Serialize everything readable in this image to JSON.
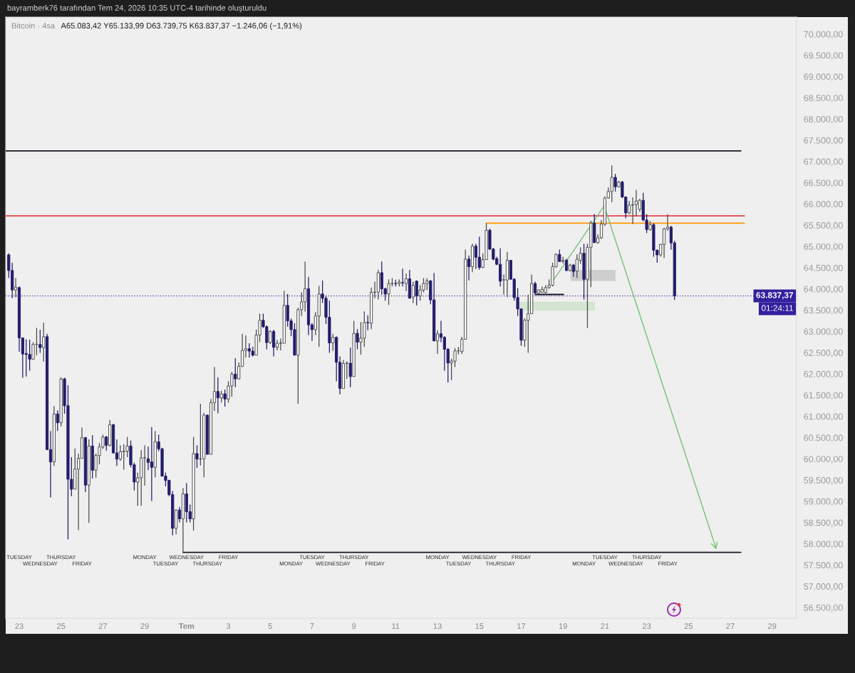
{
  "chart_data": {
    "type": "candlestick",
    "title": "Bitcoin · 4sa",
    "subtitle": "A65.083,42 Y65.133,99 D63.739,75 K63.837,37 −1.246,06 (−1,91%)",
    "annotations": [
      "bayramberk76 tarafından Tem 24, 2026 10:35 UTC-4 tarihinde oluşturuldu",
      {
        "text": "01:24:11",
        "y": 63837.37
      },
      "TUESDAY",
      "WEDNESDAY",
      "THURSDAY",
      "FRIDAY",
      "MONDAY",
      "TUESDAY",
      "WEDNESDAY",
      "THURSDAY",
      "FRIDAY",
      "MONDAY",
      "TUESDAY",
      "WEDNESDAY",
      "THURSDAY",
      "FRIDAY",
      "MONDAY",
      "TUESDAY",
      "WEDNESDAY",
      "THURSDAY",
      "FRIDAY",
      "MONDAY",
      "TUESDAY",
      "WEDNESDAY",
      "THURSDAY",
      "FRIDAY"
    ],
    "x": [
      "2026-06-22T12:00",
      "2026-06-22T16:00",
      "2026-06-22T20:00",
      "2026-06-23T00:00",
      "2026-06-23T04:00",
      "2026-06-23T08:00",
      "2026-06-23T12:00",
      "2026-06-23T16:00",
      "2026-06-23T20:00",
      "2026-06-24T00:00",
      "2026-06-24T04:00",
      "2026-06-24T08:00",
      "2026-06-24T12:00",
      "2026-06-24T16:00",
      "2026-06-24T20:00",
      "2026-06-25T00:00",
      "2026-06-25T04:00",
      "2026-06-25T08:00",
      "2026-06-25T12:00",
      "2026-06-25T16:00",
      "2026-06-25T20:00",
      "2026-06-26T00:00",
      "2026-06-26T04:00",
      "2026-06-26T08:00",
      "2026-06-26T12:00",
      "2026-06-26T16:00",
      "2026-06-26T20:00",
      "2026-06-27T00:00",
      "2026-06-27T04:00",
      "2026-06-27T08:00",
      "2026-06-27T12:00",
      "2026-06-27T16:00",
      "2026-06-27T20:00",
      "2026-06-28T00:00",
      "2026-06-28T04:00",
      "2026-06-28T08:00",
      "2026-06-28T12:00",
      "2026-06-28T16:00",
      "2026-06-28T20:00",
      "2026-06-29T00:00",
      "2026-06-29T04:00",
      "2026-06-29T08:00",
      "2026-06-29T12:00",
      "2026-06-29T16:00",
      "2026-06-29T20:00",
      "2026-06-30T00:00",
      "2026-06-30T04:00",
      "2026-06-30T08:00",
      "2026-06-30T12:00",
      "2026-06-30T16:00",
      "2026-06-30T20:00",
      "2026-07-01T00:00",
      "2026-07-01T04:00",
      "2026-07-01T08:00",
      "2026-07-01T12:00",
      "2026-07-01T16:00",
      "2026-07-01T20:00",
      "2026-07-02T00:00",
      "2026-07-02T04:00",
      "2026-07-02T08:00",
      "2026-07-02T12:00",
      "2026-07-02T16:00",
      "2026-07-02T20:00",
      "2026-07-03T00:00",
      "2026-07-03T04:00",
      "2026-07-03T08:00",
      "2026-07-03T12:00",
      "2026-07-03T16:00",
      "2026-07-03T20:00",
      "2026-07-04T00:00",
      "2026-07-04T04:00",
      "2026-07-04T08:00",
      "2026-07-04T12:00",
      "2026-07-04T16:00",
      "2026-07-04T20:00",
      "2026-07-05T00:00",
      "2026-07-05T04:00",
      "2026-07-05T08:00",
      "2026-07-05T12:00",
      "2026-07-05T16:00",
      "2026-07-05T20:00",
      "2026-07-06T00:00",
      "2026-07-06T04:00",
      "2026-07-06T08:00",
      "2026-07-06T12:00",
      "2026-07-06T16:00",
      "2026-07-06T20:00",
      "2026-07-07T00:00",
      "2026-07-07T04:00",
      "2026-07-07T08:00",
      "2026-07-07T12:00",
      "2026-07-07T16:00",
      "2026-07-07T20:00",
      "2026-07-08T00:00",
      "2026-07-08T04:00",
      "2026-07-08T08:00",
      "2026-07-08T12:00",
      "2026-07-08T16:00",
      "2026-07-08T20:00",
      "2026-07-09T00:00",
      "2026-07-09T04:00",
      "2026-07-09T08:00",
      "2026-07-09T12:00",
      "2026-07-09T16:00",
      "2026-07-09T20:00",
      "2026-07-10T00:00",
      "2026-07-10T04:00",
      "2026-07-10T08:00",
      "2026-07-10T12:00",
      "2026-07-10T16:00",
      "2026-07-10T20:00",
      "2026-07-11T00:00",
      "2026-07-11T04:00",
      "2026-07-11T08:00",
      "2026-07-11T12:00",
      "2026-07-11T16:00",
      "2026-07-11T20:00",
      "2026-07-12T00:00",
      "2026-07-12T04:00",
      "2026-07-12T08:00",
      "2026-07-12T12:00",
      "2026-07-12T16:00",
      "2026-07-12T20:00",
      "2026-07-13T00:00",
      "2026-07-13T04:00",
      "2026-07-13T08:00",
      "2026-07-13T12:00",
      "2026-07-13T16:00",
      "2026-07-13T20:00",
      "2026-07-14T00:00",
      "2026-07-14T04:00",
      "2026-07-14T08:00",
      "2026-07-14T12:00",
      "2026-07-14T16:00",
      "2026-07-14T20:00",
      "2026-07-15T00:00",
      "2026-07-15T04:00",
      "2026-07-15T08:00",
      "2026-07-15T12:00",
      "2026-07-15T16:00",
      "2026-07-15T20:00",
      "2026-07-16T00:00",
      "2026-07-16T04:00",
      "2026-07-16T08:00",
      "2026-07-16T12:00",
      "2026-07-16T16:00",
      "2026-07-16T20:00",
      "2026-07-17T00:00",
      "2026-07-17T04:00",
      "2026-07-17T08:00",
      "2026-07-17T12:00",
      "2026-07-17T16:00",
      "2026-07-17T20:00",
      "2026-07-18T00:00",
      "2026-07-18T04:00",
      "2026-07-18T08:00",
      "2026-07-18T12:00",
      "2026-07-18T16:00",
      "2026-07-18T20:00",
      "2026-07-19T00:00",
      "2026-07-19T04:00",
      "2026-07-19T08:00",
      "2026-07-19T12:00",
      "2026-07-19T16:00",
      "2026-07-19T20:00",
      "2026-07-20T00:00",
      "2026-07-20T04:00",
      "2026-07-20T08:00",
      "2026-07-20T12:00",
      "2026-07-20T16:00",
      "2026-07-20T20:00",
      "2026-07-21T00:00",
      "2026-07-21T04:00",
      "2026-07-21T08:00",
      "2026-07-21T12:00",
      "2026-07-21T16:00",
      "2026-07-21T20:00",
      "2026-07-22T00:00",
      "2026-07-22T04:00",
      "2026-07-22T08:00",
      "2026-07-22T12:00",
      "2026-07-22T16:00",
      "2026-07-22T20:00",
      "2026-07-23T00:00",
      "2026-07-23T04:00",
      "2026-07-23T08:00",
      "2026-07-23T12:00",
      "2026-07-23T16:00",
      "2026-07-23T20:00",
      "2026-07-24T00:00",
      "2026-07-24T04:00",
      "2026-07-24T08:00"
    ],
    "ohlc": [
      [
        64802,
        64840,
        64255,
        64434
      ],
      [
        64434,
        64618,
        63780,
        63976
      ],
      [
        63976,
        64255,
        63808,
        64043
      ],
      [
        64032,
        64060,
        62524,
        62848
      ],
      [
        62848,
        62848,
        61910,
        62469
      ],
      [
        62480,
        62815,
        61938,
        62458
      ],
      [
        62458,
        62804,
        62078,
        62346
      ],
      [
        62346,
        62748,
        62346,
        62692
      ],
      [
        62692,
        63083,
        62441,
        62700
      ],
      [
        62692,
        63038,
        62496,
        62619
      ],
      [
        62619,
        63206,
        62290,
        62876
      ],
      [
        62876,
        62943,
        60219,
        60219
      ],
      [
        60219,
        60654,
        59091,
        59928
      ],
      [
        59928,
        61240,
        59833,
        61056
      ],
      [
        61056,
        61140,
        60654,
        60850
      ],
      [
        60850,
        61921,
        60766,
        61882
      ],
      [
        61882,
        61910,
        61062,
        61251
      ],
      [
        61251,
        61732,
        58103,
        59521
      ],
      [
        59521,
        60040,
        59119,
        59286
      ],
      [
        59286,
        60246,
        59286,
        59761
      ],
      [
        59761,
        60124,
        58320,
        60012
      ],
      [
        60012,
        60738,
        60012,
        60498
      ],
      [
        60498,
        60515,
        59219,
        59381
      ],
      [
        59381,
        60458,
        58494,
        60302
      ],
      [
        60302,
        60559,
        59537,
        59733
      ],
      [
        59733,
        60124,
        59554,
        60079
      ],
      [
        60079,
        60375,
        59872,
        60280
      ],
      [
        60280,
        60570,
        60235,
        60515
      ],
      [
        60515,
        60542,
        60190,
        60319
      ],
      [
        60319,
        60916,
        60291,
        60805
      ],
      [
        60805,
        60822,
        60124,
        60140
      ],
      [
        60140,
        60458,
        59833,
        59995
      ],
      [
        59995,
        60319,
        59956,
        60168
      ],
      [
        60168,
        60347,
        59744,
        60180
      ],
      [
        60180,
        60515,
        60040,
        60302
      ],
      [
        60302,
        60430,
        59800,
        59861
      ],
      [
        59861,
        59912,
        59258,
        59454
      ],
      [
        59454,
        59677,
        58894,
        59554
      ],
      [
        59554,
        60207,
        58894,
        60023
      ],
      [
        60023,
        60319,
        59370,
        60030
      ],
      [
        60001,
        60291,
        59733,
        59918
      ],
      [
        59929,
        60749,
        59008,
        59800
      ],
      [
        59800,
        60654,
        59565,
        60403
      ],
      [
        60403,
        60570,
        60180,
        60236
      ],
      [
        60236,
        60263,
        59594,
        59594
      ],
      [
        59594,
        59678,
        59354,
        59493
      ],
      [
        59493,
        59510,
        59119,
        59158
      ],
      [
        59158,
        59242,
        58198,
        58366
      ],
      [
        58366,
        58812,
        58226,
        58795
      ],
      [
        58795,
        58868,
        58505,
        58589
      ],
      [
        58589,
        59315,
        57800,
        59175
      ],
      [
        59175,
        59426,
        58505,
        58756
      ],
      [
        58756,
        58924,
        58505,
        58589
      ],
      [
        58589,
        60515,
        58310,
        60124
      ],
      [
        60124,
        60320,
        59789,
        59996
      ],
      [
        59996,
        61297,
        59845,
        60001
      ],
      [
        60001,
        61084,
        59565,
        61029
      ],
      [
        61029,
        61045,
        60107,
        60107
      ],
      [
        60107,
        61408,
        60107,
        61324
      ],
      [
        61324,
        62162,
        61129,
        61587
      ],
      [
        61587,
        61922,
        61073,
        61436
      ],
      [
        61436,
        61604,
        61324,
        61531
      ],
      [
        61531,
        61632,
        61229,
        61408
      ],
      [
        61408,
        61827,
        61324,
        61715
      ],
      [
        61715,
        62050,
        61464,
        61994
      ],
      [
        61994,
        62369,
        61687,
        61883
      ],
      [
        61883,
        62274,
        61866,
        62179
      ],
      [
        62179,
        62944,
        62162,
        62553
      ],
      [
        62553,
        62905,
        62385,
        62592
      ],
      [
        62592,
        62720,
        62385,
        62536
      ],
      [
        62536,
        62637,
        62413,
        62441
      ],
      [
        62441,
        63039,
        62441,
        62916
      ],
      [
        62916,
        63418,
        62748,
        63262
      ],
      [
        63262,
        63418,
        63083,
        63111
      ],
      [
        63111,
        63139,
        62581,
        62737
      ],
      [
        62737,
        63027,
        62704,
        63000
      ],
      [
        63000,
        63039,
        62413,
        62625
      ],
      [
        62625,
        62803,
        62552,
        62720
      ],
      [
        62720,
        62831,
        62552,
        62730
      ],
      [
        62720,
        63959,
        62720,
        63613
      ],
      [
        63613,
        63881,
        63110,
        63250
      ],
      [
        63250,
        63306,
        62887,
        63043
      ],
      [
        63043,
        63194,
        62440,
        62440
      ],
      [
        62440,
        63557,
        61296,
        63512
      ],
      [
        63512,
        63920,
        63362,
        63696
      ],
      [
        63696,
        64646,
        63473,
        64004
      ],
      [
        64004,
        64283,
        62915,
        63155
      ],
      [
        63155,
        63194,
        62775,
        63043
      ],
      [
        63043,
        63457,
        62915,
        63362
      ],
      [
        63362,
        64071,
        62636,
        63881
      ],
      [
        63881,
        64199,
        63669,
        63780
      ],
      [
        63780,
        63836,
        63177,
        63334
      ],
      [
        63334,
        63724,
        62496,
        62731
      ],
      [
        62731,
        62943,
        62541,
        62859
      ],
      [
        62859,
        62887,
        61826,
        62273
      ],
      [
        62273,
        62412,
        61519,
        61659
      ],
      [
        61659,
        62329,
        61659,
        62245
      ],
      [
        62245,
        62300,
        61882,
        62252
      ],
      [
        62252,
        62619,
        61687,
        61938
      ],
      [
        61938,
        63250,
        61938,
        62954
      ],
      [
        62954,
        63055,
        62580,
        62748
      ],
      [
        62748,
        63222,
        62451,
        62842
      ],
      [
        62842,
        63473,
        62636,
        63211
      ],
      [
        63211,
        63378,
        63026,
        63205
      ],
      [
        63194,
        64032,
        63054,
        63920
      ],
      [
        63920,
        64171,
        63780,
        63926
      ],
      [
        63926,
        64450,
        63752,
        64383
      ],
      [
        64383,
        64646,
        63864,
        64004
      ],
      [
        64004,
        64031,
        63724,
        63881
      ],
      [
        63881,
        64227,
        63624,
        64126
      ],
      [
        64126,
        64255,
        64059,
        64130
      ],
      [
        64130,
        64216,
        64059,
        64126
      ],
      [
        64126,
        64227,
        64059,
        64160
      ],
      [
        64150,
        64478,
        64059,
        64145
      ],
      [
        64126,
        64366,
        63948,
        64238
      ],
      [
        64238,
        64450,
        63780,
        63780
      ],
      [
        63809,
        64172,
        63669,
        64088
      ],
      [
        64183,
        64200,
        63614,
        63837
      ],
      [
        63837,
        64088,
        63725,
        63976
      ],
      [
        63976,
        64256,
        63921,
        64127
      ],
      [
        64127,
        64256,
        63976,
        64189
      ],
      [
        64189,
        64211,
        63641,
        63742
      ],
      [
        63742,
        64378,
        62776,
        62776
      ],
      [
        62776,
        63027,
        62469,
        62944
      ],
      [
        62944,
        63251,
        62748,
        62860
      ],
      [
        62860,
        62888,
        62078,
        62581
      ],
      [
        62581,
        62609,
        61799,
        62257
      ],
      [
        62257,
        62357,
        61855,
        62302
      ],
      [
        62302,
        62609,
        62162,
        62542
      ],
      [
        62542,
        62637,
        62458,
        62547
      ],
      [
        62525,
        62871,
        62469,
        62815
      ],
      [
        62815,
        64926,
        62815,
        64702
      ],
      [
        64702,
        64786,
        64200,
        64524
      ],
      [
        64524,
        65065,
        64395,
        65009
      ],
      [
        65009,
        65065,
        64468,
        64747
      ],
      [
        64747,
        65233,
        64451,
        64507
      ],
      [
        64507,
        64842,
        64490,
        64691
      ],
      [
        64691,
        65551,
        64691,
        65383
      ],
      [
        65383,
        65417,
        64926,
        64937
      ],
      [
        64937,
        64970,
        64674,
        64702
      ],
      [
        64713,
        64758,
        64563,
        64580
      ],
      [
        64580,
        64954,
        64060,
        64183
      ],
      [
        64211,
        64340,
        63865,
        64215
      ],
      [
        64211,
        64870,
        63809,
        64674
      ],
      [
        64674,
        64685,
        64228,
        64228
      ],
      [
        64228,
        64256,
        63725,
        63798
      ],
      [
        63798,
        64021,
        63362,
        63530
      ],
      [
        63530,
        63541,
        62664,
        62793
      ],
      [
        62793,
        63306,
        62637,
        63262
      ],
      [
        63262,
        63865,
        62497,
        63418
      ],
      [
        63418,
        64340,
        63418,
        64127
      ],
      [
        64127,
        64172,
        63904,
        63904
      ],
      [
        63904,
        63988,
        63904,
        63976
      ],
      [
        63921,
        64060,
        63921,
        63988
      ],
      [
        63921,
        64088,
        63893,
        64032
      ],
      [
        64032,
        64227,
        64004,
        64088
      ],
      [
        64088,
        64618,
        64060,
        64523
      ],
      [
        64523,
        64841,
        64506,
        64813
      ],
      [
        64813,
        64925,
        64646,
        64646
      ],
      [
        64646,
        64758,
        64601,
        64674
      ],
      [
        64674,
        64712,
        64422,
        64433
      ],
      [
        64433,
        64590,
        64411,
        64562
      ],
      [
        64562,
        64590,
        64283,
        64411
      ],
      [
        64422,
        64813,
        64260,
        64701
      ],
      [
        64673,
        64981,
        64590,
        64841
      ],
      [
        64841,
        65064,
        63752,
        64227
      ],
      [
        64227,
        65064,
        63082,
        64980
      ],
      [
        64980,
        65606,
        64042,
        65550
      ],
      [
        65550,
        65762,
        65081,
        65092
      ],
      [
        65092,
        65288,
        65064,
        65204
      ],
      [
        65204,
        65623,
        65176,
        65528
      ],
      [
        65528,
        66181,
        65483,
        66142
      ],
      [
        66142,
        66387,
        66125,
        66293
      ],
      [
        66293,
        66907,
        66041,
        66627
      ],
      [
        66627,
        66711,
        66293,
        66404
      ],
      [
        66404,
        66544,
        66387,
        66516
      ],
      [
        66516,
        66544,
        66142,
        66164
      ],
      [
        66164,
        66181,
        65662,
        65790
      ],
      [
        65790,
        66069,
        65762,
        65974
      ],
      [
        65974,
        66153,
        65528,
        65986
      ],
      [
        65986,
        66332,
        65706,
        66069
      ],
      [
        65874,
        66125,
        65818,
        66086
      ],
      [
        66086,
        66265,
        65595,
        65623
      ],
      [
        65623,
        65762,
        65315,
        65399
      ],
      [
        65399,
        65595,
        65371,
        65511
      ],
      [
        65511,
        65550,
        64757,
        64913
      ],
      [
        64913,
        64925,
        64618,
        64802
      ],
      [
        64802,
        65064,
        64757,
        65047
      ],
      [
        65047,
        65439,
        64730,
        65416
      ],
      [
        65416,
        65762,
        65371,
        65455
      ],
      [
        65455,
        65483,
        64925,
        65083.43
      ],
      [
        65083.42,
        65133.99,
        63739.75,
        63837.37
      ]
    ],
    "colors": [
      "#221d6b",
      "#221d6b",
      "#ffffff",
      "#221d6b",
      "#221d6b",
      "#221d6b",
      "#221d6b",
      "#ffffff",
      "#ffffff",
      "#221d6b",
      "#ffffff",
      "#221d6b",
      "#221d6b",
      "#ffffff",
      "#221d6b",
      "#ffffff",
      "#221d6b",
      "#221d6b",
      "#221d6b",
      "#ffffff",
      "#ffffff",
      "#ffffff",
      "#221d6b",
      "#ffffff",
      "#221d6b",
      "#ffffff",
      "#ffffff",
      "#ffffff",
      "#221d6b",
      "#ffffff",
      "#221d6b",
      "#221d6b",
      "#ffffff",
      "#ffffff",
      "#ffffff",
      "#221d6b",
      "#221d6b",
      "#ffffff",
      "#ffffff",
      "#ffffff",
      "#221d6b",
      "#221d6b",
      "#ffffff",
      "#221d6b",
      "#221d6b",
      "#221d6b",
      "#221d6b",
      "#221d6b",
      "#ffffff",
      "#221d6b",
      "#ffffff",
      "#221d6b",
      "#221d6b",
      "#ffffff",
      "#221d6b",
      "#ffffff",
      "#ffffff",
      "#221d6b",
      "#ffffff",
      "#ffffff",
      "#221d6b",
      "#ffffff",
      "#221d6b",
      "#ffffff",
      "#ffffff",
      "#221d6b",
      "#ffffff",
      "#ffffff",
      "#ffffff",
      "#221d6b",
      "#221d6b",
      "#ffffff",
      "#ffffff",
      "#221d6b",
      "#221d6b",
      "#ffffff",
      "#221d6b",
      "#ffffff",
      "#ffffff",
      "#ffffff",
      "#221d6b",
      "#221d6b",
      "#221d6b",
      "#ffffff",
      "#ffffff",
      "#ffffff",
      "#221d6b",
      "#221d6b",
      "#ffffff",
      "#ffffff",
      "#221d6b",
      "#221d6b",
      "#221d6b",
      "#ffffff",
      "#221d6b",
      "#221d6b",
      "#ffffff",
      "#ffffff",
      "#221d6b",
      "#ffffff",
      "#221d6b",
      "#ffffff",
      "#ffffff",
      "#221d6b",
      "#ffffff",
      "#ffffff",
      "#ffffff",
      "#221d6b",
      "#221d6b",
      "#ffffff",
      "#ffffff",
      "#221d6b",
      "#ffffff",
      "#221d6b",
      "#ffffff",
      "#221d6b",
      "#ffffff",
      "#221d6b",
      "#ffffff",
      "#ffffff",
      "#ffffff",
      "#221d6b",
      "#221d6b",
      "#ffffff",
      "#221d6b",
      "#221d6b",
      "#221d6b",
      "#ffffff",
      "#ffffff",
      "#ffffff",
      "#ffffff",
      "#ffffff",
      "#221d6b",
      "#ffffff",
      "#221d6b",
      "#221d6b",
      "#ffffff",
      "#ffffff",
      "#221d6b",
      "#221d6b",
      "#221d6b",
      "#221d6b",
      "#ffffff",
      "#ffffff",
      "#221d6b",
      "#221d6b",
      "#221d6b",
      "#221d6b",
      "#ffffff",
      "#ffffff",
      "#ffffff",
      "#221d6b",
      "#ffffff",
      "#ffffff",
      "#ffffff",
      "#ffffff",
      "#ffffff",
      "#ffffff",
      "#221d6b",
      "#ffffff",
      "#221d6b",
      "#ffffff",
      "#221d6b",
      "#ffffff",
      "#ffffff",
      "#221d6b",
      "#ffffff",
      "#ffffff",
      "#221d6b",
      "#ffffff",
      "#ffffff",
      "#ffffff",
      "#ffffff",
      "#ffffff",
      "#221d6b",
      "#ffffff",
      "#221d6b",
      "#221d6b",
      "#ffffff",
      "#ffffff",
      "#ffffff",
      "#ffffff",
      "#221d6b",
      "#221d6b",
      "#ffffff",
      "#221d6b",
      "#221d6b",
      "#ffffff",
      "#ffffff",
      "#ffffff",
      "#221d6b",
      "#221d6b"
    ],
    "series": [
      {
        "type": "line",
        "color": "#d3e6d2",
        "x": [
          "2026-07-16T22:00",
          "2026-07-20T12:30"
        ],
        "values": [
          null,
          null
        ],
        "lower": [
          63490,
          63490
        ],
        "upper": [
          63700,
          63700
        ]
      },
      {
        "type": "line",
        "color": "#cfcece",
        "x": [
          "2026-07-19T08:40",
          "2026-07-21T12:15"
        ],
        "values": [
          null,
          null
        ],
        "lower": [
          64190,
          64190
        ],
        "upper": [
          64450,
          64450
        ]
      },
      {
        "type": "line",
        "color": "#131722",
        "x": [
          "2026-06-22T08:30",
          "2026-07-27T12:00"
        ],
        "values": [
          67250,
          67250
        ]
      },
      {
        "type": "line",
        "color": "#e8414e",
        "x": [
          "2026-06-22T08:30",
          "2026-07-27T16:00"
        ],
        "values": [
          65720,
          65720
        ]
      },
      {
        "type": "line",
        "color": "#ff9800",
        "x": [
          "2026-07-15T08:00",
          "2026-07-27T16:00"
        ],
        "values": [
          65550,
          65550
        ]
      },
      {
        "type": "line",
        "color": "#131722",
        "x": [
          "2026-06-30T20:00",
          "2026-07-27T12:00"
        ],
        "values": [
          57800,
          57800
        ]
      },
      {
        "type": "line",
        "color": "#131722",
        "x": [
          "2026-07-17T16:00",
          "2026-07-19T00:30"
        ],
        "values": [
          63870,
          63870
        ]
      }
    ],
    "ref_lines": [
      {
        "axis": "y",
        "value": 63837.37,
        "label": "63.837,37",
        "color": "#32209e",
        "line_style": "dotted"
      }
    ],
    "xlim": [
      "2026-06-22T08:30",
      "2026-07-30T04:00"
    ],
    "ylim": [
      56250,
      70400
    ],
    "xticks": [
      {
        "value": "2026-06-23",
        "label": "23"
      },
      {
        "value": "2026-06-25",
        "label": "25"
      },
      {
        "value": "2026-06-27",
        "label": "27"
      },
      {
        "value": "2026-06-29",
        "label": "29"
      },
      {
        "value": "2026-07-01",
        "label": "Tem"
      },
      {
        "value": "2026-07-03",
        "label": "3"
      },
      {
        "value": "2026-07-05",
        "label": "5"
      },
      {
        "value": "2026-07-07",
        "label": "7"
      },
      {
        "value": "2026-07-09",
        "label": "9"
      },
      {
        "value": "2026-07-11",
        "label": "11"
      },
      {
        "value": "2026-07-13",
        "label": "13"
      },
      {
        "value": "2026-07-15",
        "label": "15"
      },
      {
        "value": "2026-07-17",
        "label": "17"
      },
      {
        "value": "2026-07-19",
        "label": "19"
      },
      {
        "value": "2026-07-21",
        "label": "21"
      },
      {
        "value": "2026-07-23",
        "label": "23"
      },
      {
        "value": "2026-07-25",
        "label": "25"
      },
      {
        "value": "2026-07-27",
        "label": "27"
      },
      {
        "value": "2026-07-29",
        "label": "29"
      }
    ],
    "yticks": [
      {
        "value": 56500,
        "label": "56.500,00"
      },
      {
        "value": 57000,
        "label": "57.000,00"
      },
      {
        "value": 57500,
        "label": "57.500,00"
      },
      {
        "value": 58000,
        "label": "58.000,00"
      },
      {
        "value": 58500,
        "label": "58.500,00"
      },
      {
        "value": 59000,
        "label": "59.000,00"
      },
      {
        "value": 59500,
        "label": "59.500,00"
      },
      {
        "value": 60000,
        "label": "60.000,00"
      },
      {
        "value": 60500,
        "label": "60.500,00"
      },
      {
        "value": 61000,
        "label": "61.000,00"
      },
      {
        "value": 61500,
        "label": "61.500,00"
      },
      {
        "value": 62000,
        "label": "62.000,00"
      },
      {
        "value": 62500,
        "label": "62.500,00"
      },
      {
        "value": 63000,
        "label": "63.000,00"
      },
      {
        "value": 63500,
        "label": "63.500,00"
      },
      {
        "value": 64000,
        "label": "64.000,00"
      },
      {
        "value": 64500,
        "label": "64.500,00"
      },
      {
        "value": 65000,
        "label": "65.000,00"
      },
      {
        "value": 65500,
        "label": "65.500,00"
      },
      {
        "value": 66000,
        "label": "66.000,00"
      },
      {
        "value": 66500,
        "label": "66.500,00"
      },
      {
        "value": 67000,
        "label": "67.000,00"
      },
      {
        "value": 67500,
        "label": "67.500,00"
      },
      {
        "value": 68000,
        "label": "68.000,00"
      },
      {
        "value": 68500,
        "label": "68.500,00"
      },
      {
        "value": 69000,
        "label": "69.000,00"
      },
      {
        "value": 69500,
        "label": "69.500,00"
      },
      {
        "value": 70000,
        "label": "70.000,00"
      }
    ]
  }
}
